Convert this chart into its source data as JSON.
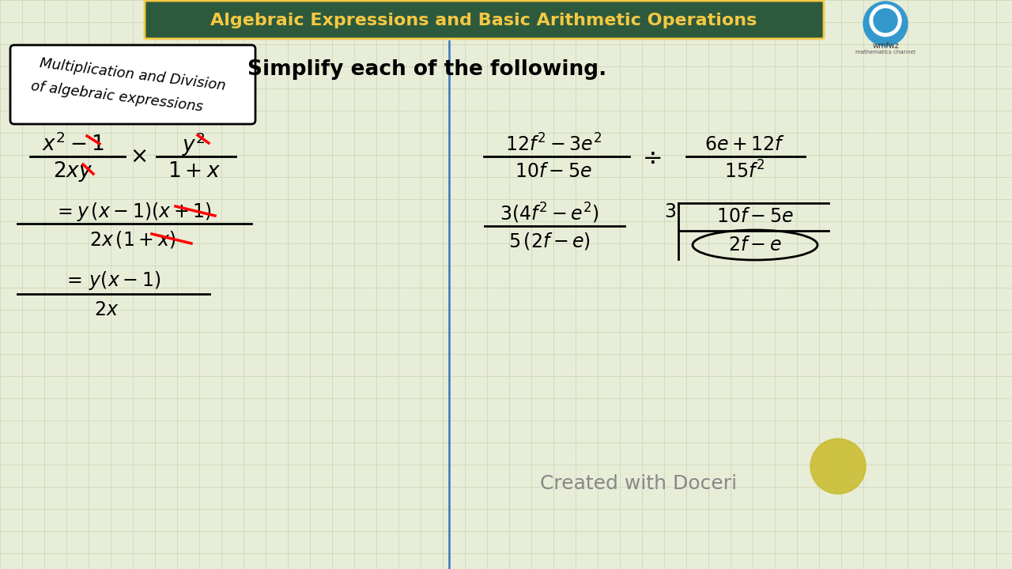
{
  "bg_color": "#e8edd8",
  "grid_color": "#c8d4b0",
  "header_bg": "#2d5a3d",
  "header_text": "Algebraic Expressions and Basic Arithmetic Operations",
  "header_text_color": "#f5c842",
  "title_text": "Simplify each of the following.",
  "divider_color": "#4a7fc1",
  "box_text_line1": "Multiplication and Division",
  "box_text_line2": "of algebraic expressions",
  "watermark": "Created with Doceri",
  "watermark_color": "#888888"
}
